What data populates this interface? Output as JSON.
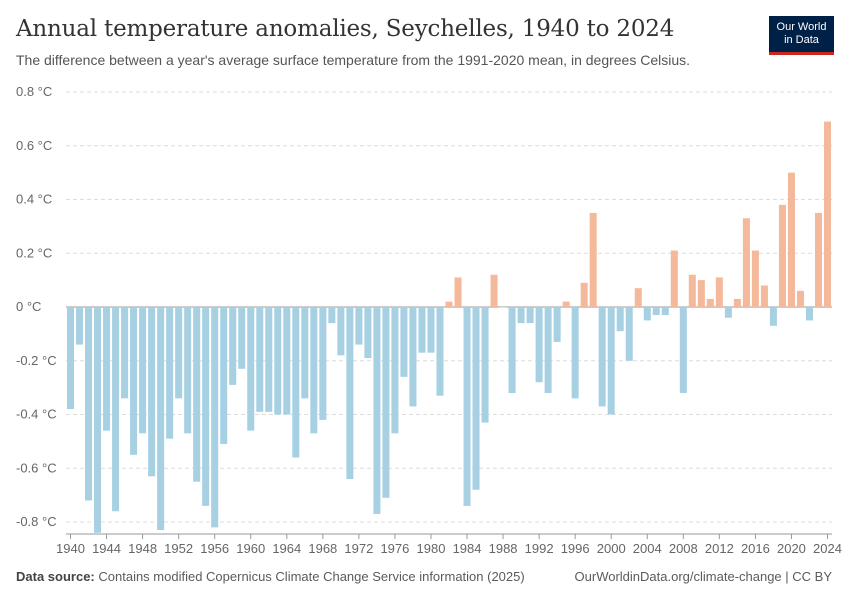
{
  "header": {
    "title": "Annual temperature anomalies, Seychelles, 1940 to 2024",
    "subtitle": "The difference between a year's average surface temperature from the 1991-2020 mean, in degrees Celsius.",
    "logo_line1": "Our World",
    "logo_line2": "in Data"
  },
  "footer": {
    "source_label": "Data source:",
    "source_text": "Contains modified Copernicus Climate Change Service information (2025)",
    "right_text": "OurWorldinData.org/climate-change | CC BY"
  },
  "colors": {
    "positive": "#f4b89b",
    "negative": "#a7d1e3",
    "grid": "#dcdcdc",
    "zero": "#999999"
  },
  "chart_data": {
    "type": "bar",
    "y_ticks": [
      "-0.8 °C",
      "-0.6 °C",
      "-0.4 °C",
      "-0.2 °C",
      "0 °C",
      "0.2 °C",
      "0.4 °C",
      "0.6 °C",
      "0.8 °C"
    ],
    "x_ticks": [
      "1940",
      "1944",
      "1948",
      "1952",
      "1956",
      "1960",
      "1964",
      "1968",
      "1972",
      "1976",
      "1980",
      "1984",
      "1988",
      "1992",
      "1996",
      "2000",
      "2004",
      "2008",
      "2012",
      "2016",
      "2020",
      "2024"
    ],
    "ylim": [
      -0.8,
      0.8
    ],
    "grid": true,
    "years": [
      1940,
      1941,
      1942,
      1943,
      1944,
      1945,
      1946,
      1947,
      1948,
      1949,
      1950,
      1951,
      1952,
      1953,
      1954,
      1955,
      1956,
      1957,
      1958,
      1959,
      1960,
      1961,
      1962,
      1963,
      1964,
      1965,
      1966,
      1967,
      1968,
      1969,
      1970,
      1971,
      1972,
      1973,
      1974,
      1975,
      1976,
      1977,
      1978,
      1979,
      1980,
      1981,
      1982,
      1983,
      1984,
      1985,
      1986,
      1987,
      1988,
      1989,
      1990,
      1991,
      1992,
      1993,
      1994,
      1995,
      1996,
      1997,
      1998,
      1999,
      2000,
      2001,
      2002,
      2003,
      2004,
      2005,
      2006,
      2007,
      2008,
      2009,
      2010,
      2011,
      2012,
      2013,
      2014,
      2015,
      2016,
      2017,
      2018,
      2019,
      2020,
      2021,
      2022,
      2023,
      2024
    ],
    "values": [
      -0.38,
      -0.14,
      -0.72,
      -0.84,
      -0.46,
      -0.76,
      -0.34,
      -0.55,
      -0.47,
      -0.63,
      -0.83,
      -0.49,
      -0.34,
      -0.47,
      -0.65,
      -0.74,
      -0.82,
      -0.51,
      -0.29,
      -0.23,
      -0.46,
      -0.39,
      -0.39,
      -0.4,
      -0.4,
      -0.56,
      -0.34,
      -0.47,
      -0.42,
      -0.06,
      -0.18,
      -0.64,
      -0.14,
      -0.19,
      -0.77,
      -0.71,
      -0.47,
      -0.26,
      -0.37,
      -0.17,
      -0.17,
      -0.33,
      0.02,
      0.11,
      -0.74,
      -0.68,
      -0.43,
      0.12,
      0.0,
      -0.32,
      -0.06,
      -0.06,
      -0.28,
      -0.32,
      -0.13,
      0.02,
      -0.34,
      0.09,
      0.35,
      -0.37,
      -0.4,
      -0.09,
      -0.2,
      0.07,
      -0.05,
      -0.03,
      -0.03,
      0.21,
      -0.32,
      0.12,
      0.1,
      0.03,
      0.11,
      -0.04,
      0.03,
      0.33,
      0.21,
      0.08,
      -0.07,
      0.38,
      0.5,
      0.06,
      -0.05,
      0.35,
      0.69
    ]
  }
}
